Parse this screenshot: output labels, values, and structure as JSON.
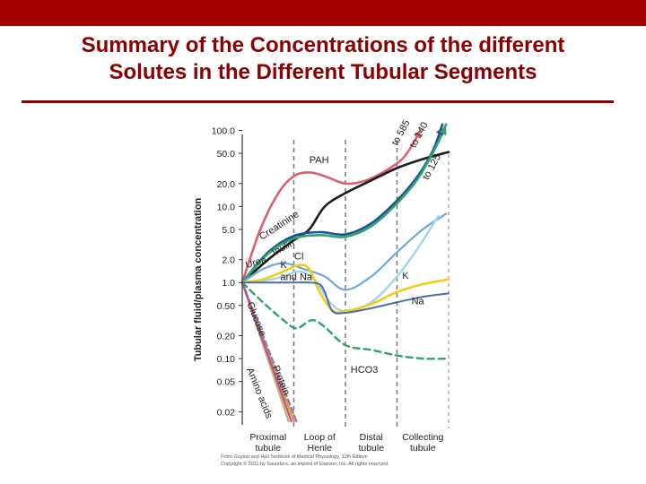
{
  "slide": {
    "title_line1": "Summary of the Concentrations of the different",
    "title_line2": "Solutes in the Different Tubular Segments",
    "accent_color": "#a50000",
    "title_color": "#8b0000"
  },
  "chart_data": {
    "type": "line",
    "title": "",
    "xlabel": "",
    "ylabel": "Tubular fluid/plasma concentration",
    "yscale": "log",
    "ylim": [
      0.015,
      110
    ],
    "xlim": [
      0,
      4
    ],
    "y_ticks": [
      {
        "value": 100,
        "label": "100.0"
      },
      {
        "value": 50,
        "label": "50.0"
      },
      {
        "value": 20,
        "label": "20.0"
      },
      {
        "value": 10,
        "label": "10.0"
      },
      {
        "value": 5,
        "label": "5.0"
      },
      {
        "value": 2,
        "label": "2.0"
      },
      {
        "value": 1,
        "label": "1.0"
      },
      {
        "value": 0.5,
        "label": "0.50"
      },
      {
        "value": 0.2,
        "label": "0.20"
      },
      {
        "value": 0.1,
        "label": "0.10"
      },
      {
        "value": 0.05,
        "label": "0.05"
      },
      {
        "value": 0.02,
        "label": "0.02"
      }
    ],
    "segments": [
      {
        "label_line1": "Proximal",
        "label_line2": "tubule",
        "center": 0.5
      },
      {
        "label_line1": "Loop of",
        "label_line2": "Henle",
        "center": 1.5
      },
      {
        "label_line1": "Distal",
        "label_line2": "tubule",
        "center": 2.5
      },
      {
        "label_line1": "Collecting",
        "label_line2": "tubule",
        "center": 3.5
      }
    ],
    "boundaries": [
      1,
      2,
      3
    ],
    "series": [
      {
        "name": "PAH",
        "color": "#d9606d",
        "width": 2.6,
        "dash": "",
        "points": [
          [
            0,
            1
          ],
          [
            0.35,
            5
          ],
          [
            0.7,
            15
          ],
          [
            1,
            25
          ],
          [
            1.3,
            28
          ],
          [
            1.6,
            25
          ],
          [
            2,
            20
          ],
          [
            2.4,
            22
          ],
          [
            2.8,
            30
          ],
          [
            3.1,
            42
          ],
          [
            3.3,
            65
          ],
          [
            3.45,
            100
          ]
        ],
        "label": {
          "text": "PAH",
          "x": 1.3,
          "y": 37,
          "anchor": "start",
          "rotate": 0
        }
      },
      {
        "name": "Creatinine",
        "color": "#1c1c1c",
        "width": 2.6,
        "dash": "",
        "points": [
          [
            0,
            1
          ],
          [
            0.5,
            2
          ],
          [
            1,
            3.6
          ],
          [
            1.3,
            5
          ],
          [
            1.6,
            10
          ],
          [
            2,
            15
          ],
          [
            2.5,
            22
          ],
          [
            3,
            32
          ],
          [
            3.5,
            42
          ],
          [
            4,
            52
          ]
        ],
        "label": {
          "text": "Creatinine",
          "x": 0.38,
          "y": 3.6,
          "anchor": "start",
          "rotate": -33
        }
      },
      {
        "name": "Inulin",
        "color": "#1f4f9a",
        "width": 2.6,
        "dash": "",
        "points": [
          [
            0,
            1
          ],
          [
            0.5,
            2.5
          ],
          [
            1,
            4.1
          ],
          [
            1.5,
            4.6
          ],
          [
            2,
            4.3
          ],
          [
            2.5,
            6
          ],
          [
            3,
            12
          ],
          [
            3.4,
            25
          ],
          [
            3.7,
            55
          ],
          [
            3.88,
            120
          ]
        ],
        "label": {
          "text": "Inulin",
          "x": 0.62,
          "y": 2.25,
          "anchor": "start",
          "rotate": -28
        }
      },
      {
        "name": "to 125 (green)",
        "color": "#2ea36a",
        "width": 2.6,
        "dash": "",
        "points": [
          [
            0,
            1
          ],
          [
            0.5,
            2.4
          ],
          [
            1,
            3.8
          ],
          [
            1.5,
            4.2
          ],
          [
            2,
            4.0
          ],
          [
            2.5,
            5.5
          ],
          [
            3,
            11
          ],
          [
            3.4,
            23
          ],
          [
            3.75,
            60
          ],
          [
            3.95,
            120
          ]
        ],
        "label": null
      },
      {
        "name": "Urea",
        "color": "#6aa9e0",
        "width": 2.2,
        "dash": "",
        "points": [
          [
            0,
            1
          ],
          [
            0.4,
            1.5
          ],
          [
            0.8,
            1.8
          ],
          [
            1.2,
            1.5
          ],
          [
            1.6,
            1.2
          ],
          [
            2,
            0.8
          ],
          [
            2.5,
            1.2
          ],
          [
            3,
            2.5
          ],
          [
            3.5,
            5
          ],
          [
            3.95,
            8
          ]
        ],
        "label": {
          "text": "Urea",
          "x": 0.08,
          "y": 1.55,
          "anchor": "start",
          "rotate": -15
        }
      },
      {
        "name": "K",
        "color": "#a3d4ee",
        "width": 2.4,
        "dash": "",
        "points": [
          [
            0,
            1
          ],
          [
            0.4,
            1.05
          ],
          [
            0.8,
            1.2
          ],
          [
            1.1,
            1.4
          ],
          [
            1.4,
            1.1
          ],
          [
            1.7,
            0.55
          ],
          [
            2,
            0.42
          ],
          [
            2.5,
            0.55
          ],
          [
            3,
            1.2
          ],
          [
            3.4,
            2.8
          ],
          [
            3.8,
            7.5
          ]
        ],
        "label": {
          "text": "K",
          "x": 3.1,
          "y": 1.12,
          "anchor": "start",
          "rotate": 0
        }
      },
      {
        "name": "Cl",
        "color": "#f2cc1a",
        "width": 2.6,
        "dash": "",
        "points": [
          [
            0,
            1
          ],
          [
            0.4,
            1.1
          ],
          [
            0.8,
            1.4
          ],
          [
            1.1,
            1.7
          ],
          [
            1.3,
            1.5
          ],
          [
            1.5,
            0.75
          ],
          [
            1.75,
            0.43
          ],
          [
            2,
            0.42
          ],
          [
            2.5,
            0.52
          ],
          [
            3,
            0.75
          ],
          [
            3.5,
            0.95
          ],
          [
            4,
            1.1
          ]
        ],
        "label": {
          "text": "Cl",
          "x": 1.1,
          "y": 2.0,
          "anchor": "middle",
          "rotate": 0
        }
      },
      {
        "name": "K and Na",
        "color": "#4a6fa5",
        "width": 2.0,
        "dash": "",
        "points": [
          [
            0,
            1
          ],
          [
            0.5,
            1
          ],
          [
            1,
            1
          ],
          [
            1.3,
            1
          ],
          [
            1.5,
            0.95
          ],
          [
            1.6,
            0.75
          ],
          [
            1.75,
            0.42
          ],
          [
            2,
            0.4
          ],
          [
            2.5,
            0.46
          ],
          [
            3,
            0.55
          ],
          [
            3.5,
            0.65
          ],
          [
            4,
            0.72
          ]
        ],
        "label": {
          "text": "Na",
          "x": 3.28,
          "y": 0.52,
          "anchor": "start",
          "rotate": 0
        }
      },
      {
        "name": "HCO3",
        "color": "#2ea36a",
        "width": 2.4,
        "dash": "7 5",
        "points": [
          [
            0,
            1
          ],
          [
            0.4,
            0.55
          ],
          [
            0.8,
            0.32
          ],
          [
            1.05,
            0.25
          ],
          [
            1.35,
            0.32
          ],
          [
            1.6,
            0.26
          ],
          [
            2,
            0.15
          ],
          [
            2.5,
            0.13
          ],
          [
            3,
            0.11
          ],
          [
            3.5,
            0.1
          ],
          [
            4,
            0.1
          ]
        ],
        "label": {
          "text": "HCO3",
          "x": 2.1,
          "y": 0.065,
          "anchor": "start",
          "rotate": 0
        }
      },
      {
        "name": "Glucose",
        "color": "#e09a3c",
        "width": 2.4,
        "dash": "",
        "points": [
          [
            0,
            1
          ],
          [
            1,
            0.015
          ]
        ],
        "label": {
          "text": "Glucose",
          "x": 0.22,
          "y": 0.32,
          "anchor": "middle",
          "rotate": 68
        }
      },
      {
        "name": "Amino acids",
        "color": "#c7b27a",
        "width": 2.4,
        "dash": "",
        "points": [
          [
            0,
            1
          ],
          [
            0.9,
            0.015
          ]
        ],
        "label": {
          "text": "Amino acids",
          "x": 0.28,
          "y": 0.034,
          "anchor": "middle",
          "rotate": 68
        }
      },
      {
        "name": "Protein",
        "color": "#8c7fb8",
        "width": 2.4,
        "dash": "6 4",
        "points": [
          [
            0,
            1
          ],
          [
            1.05,
            0.015
          ]
        ],
        "label": {
          "text": "Protein",
          "x": 0.7,
          "y": 0.05,
          "anchor": "middle",
          "rotate": 68
        }
      },
      {
        "name": "Protein (magenta)",
        "color": "#b3508f",
        "width": 2.0,
        "dash": "",
        "points": [
          [
            0,
            1
          ],
          [
            0.95,
            0.015
          ]
        ],
        "label": null
      }
    ],
    "annotations": [
      {
        "text": "K",
        "x": 0.74,
        "y": 1.55,
        "anchor": "start"
      },
      {
        "text": "and Na",
        "x": 0.74,
        "y": 1.08,
        "anchor": "start"
      }
    ],
    "top_labels": [
      {
        "text": "to 585",
        "x": 3.0,
        "y": 62,
        "color": "#d9606d",
        "rotate": -62
      },
      {
        "text": "to 140",
        "x": 3.35,
        "y": 58,
        "color": "#1f4f9a",
        "rotate": -62
      },
      {
        "text": "to 125",
        "x": 3.6,
        "y": 22,
        "color": "#2ea36a",
        "rotate": -62
      }
    ],
    "source_line1": "From Guyton and Hall Textbook of Medical Physiology, 12th Edition",
    "source_line2": "Copyright © 2011 by Saunders, an imprint of Elsevier, Inc. All rights reserved."
  }
}
